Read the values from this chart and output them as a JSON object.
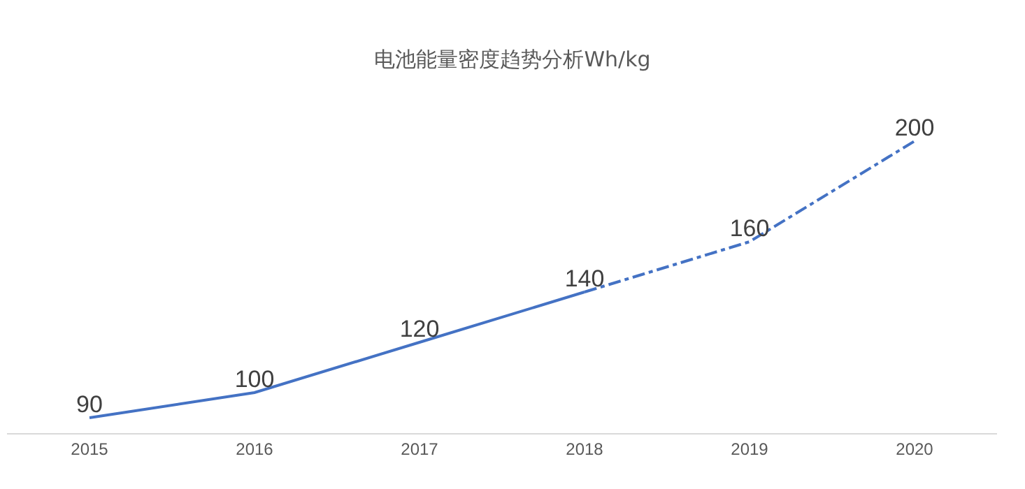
{
  "chart_data": {
    "type": "line",
    "title": "电池能量密度趋势分析Wh/kg",
    "categories": [
      "2015",
      "2016",
      "2017",
      "2018",
      "2019",
      "2020"
    ],
    "series": [
      {
        "color": "#4472c4",
        "line_style": "solid",
        "values": [
          90,
          100,
          120,
          140,
          null,
          null
        ],
        "value_labels": [
          "90",
          "100",
          "120",
          "140",
          null,
          null
        ]
      },
      {
        "color": "#4472c4",
        "line_style": "dashed",
        "values": [
          null,
          null,
          null,
          140,
          160,
          200
        ],
        "value_labels": [
          null,
          null,
          null,
          null,
          "160",
          "200"
        ]
      }
    ],
    "legend": false,
    "marker": "none",
    "tick_labels": "x"
  }
}
